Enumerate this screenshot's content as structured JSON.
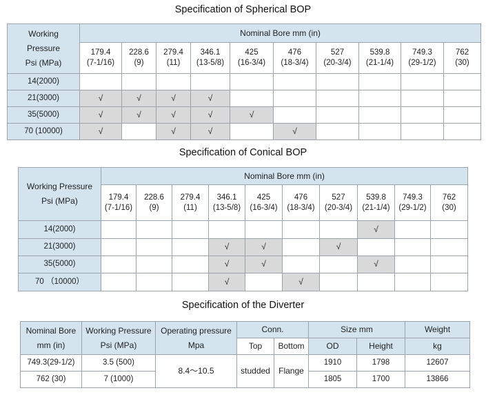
{
  "spherical": {
    "title": "Specification of Spherical BOP",
    "corner_label": "Working Pressure Psi  (MPa)",
    "bore_header": "Nominal Bore mm (in)",
    "bores": [
      {
        "mm": "179.4",
        "inch": "(7-1/16)"
      },
      {
        "mm": "228.6",
        "inch": "(9)"
      },
      {
        "mm": "279.4",
        "inch": "(11)"
      },
      {
        "mm": "346.1",
        "inch": "(13-5/8)"
      },
      {
        "mm": "425",
        "inch": "(16-3/4)"
      },
      {
        "mm": "476",
        "inch": "(18-3/4)"
      },
      {
        "mm": "527",
        "inch": "(20-3/4)"
      },
      {
        "mm": "539.8",
        "inch": "(21-1/4)"
      },
      {
        "mm": "749.3",
        "inch": "(29-1/2)"
      },
      {
        "mm": "762",
        "inch": "(30)"
      }
    ],
    "rows": [
      {
        "label": "14(2000)",
        "cells": [
          "",
          "",
          "",
          "",
          "",
          "",
          "",
          "",
          "",
          ""
        ]
      },
      {
        "label": "21(3000)",
        "cells": [
          "√",
          "√",
          "√",
          "√",
          "",
          "",
          "",
          "",
          "",
          ""
        ]
      },
      {
        "label": "35(5000)",
        "cells": [
          "√",
          "√",
          "√",
          "√",
          "√",
          "",
          "",
          "",
          "",
          ""
        ]
      },
      {
        "label": "70 (10000)",
        "cells": [
          "√",
          "",
          "√",
          "√",
          "",
          "√",
          "",
          "",
          "",
          ""
        ]
      }
    ]
  },
  "conical": {
    "title": "Specification of Conical  BOP",
    "corner_label": "Working Pressure Psi (MPa)",
    "bore_header": "Nominal Bore mm (in)",
    "bores": [
      {
        "mm": "179.4",
        "inch": "(7-1/16)"
      },
      {
        "mm": "228.6",
        "inch": "(9)"
      },
      {
        "mm": "279.4",
        "inch": "(11)"
      },
      {
        "mm": "346.1",
        "inch": "(13-5/8)"
      },
      {
        "mm": "425",
        "inch": "(16-3/4)"
      },
      {
        "mm": "476",
        "inch": "(18-3/4)"
      },
      {
        "mm": "527",
        "inch": "(20-3/4)"
      },
      {
        "mm": "539.8",
        "inch": "(21-1/4)"
      },
      {
        "mm": "749.3",
        "inch": "(29-1/2)"
      },
      {
        "mm": "762",
        "inch": "(30)"
      }
    ],
    "rows": [
      {
        "label": "14(2000)",
        "cells": [
          "",
          "",
          "",
          "",
          "",
          "",
          "",
          "√",
          "",
          ""
        ]
      },
      {
        "label": "21(3000)",
        "cells": [
          "",
          "",
          "",
          "√",
          "√",
          "",
          "√",
          "",
          "",
          ""
        ]
      },
      {
        "label": "35(5000)",
        "cells": [
          "",
          "",
          "",
          "√",
          "√",
          "",
          "",
          "√",
          "",
          ""
        ]
      },
      {
        "label": "70 （10000）",
        "cells": [
          "",
          "",
          "",
          "√",
          "",
          "√",
          "",
          "",
          "",
          ""
        ]
      }
    ]
  },
  "diverter": {
    "title": "Specification of the Diverter",
    "headers": {
      "nominal_bore": "Nominal Bore mm (in)",
      "working_pressure": "Working Pressure Psi (MPa)",
      "operating_pressure": "Operating pressure Mpa",
      "conn": "Conn.",
      "conn_top": "Top",
      "conn_bottom": "Bottom",
      "size": "Size mm",
      "size_od": "OD",
      "size_height": "Height",
      "weight": "Weight",
      "weight_unit": "kg"
    },
    "operating_pressure_value": "8.4～10.5",
    "conn_top_value": "studded",
    "conn_bottom_value": "Flange",
    "rows": [
      {
        "bore": "749.3(29-1/2)",
        "pressure": "3.5 (500)",
        "od": "1910",
        "height": "1798",
        "weight": "12607"
      },
      {
        "bore": "762 (30)",
        "pressure": "7 (1000)",
        "od": "1805",
        "height": "1700",
        "weight": "13866"
      }
    ]
  }
}
